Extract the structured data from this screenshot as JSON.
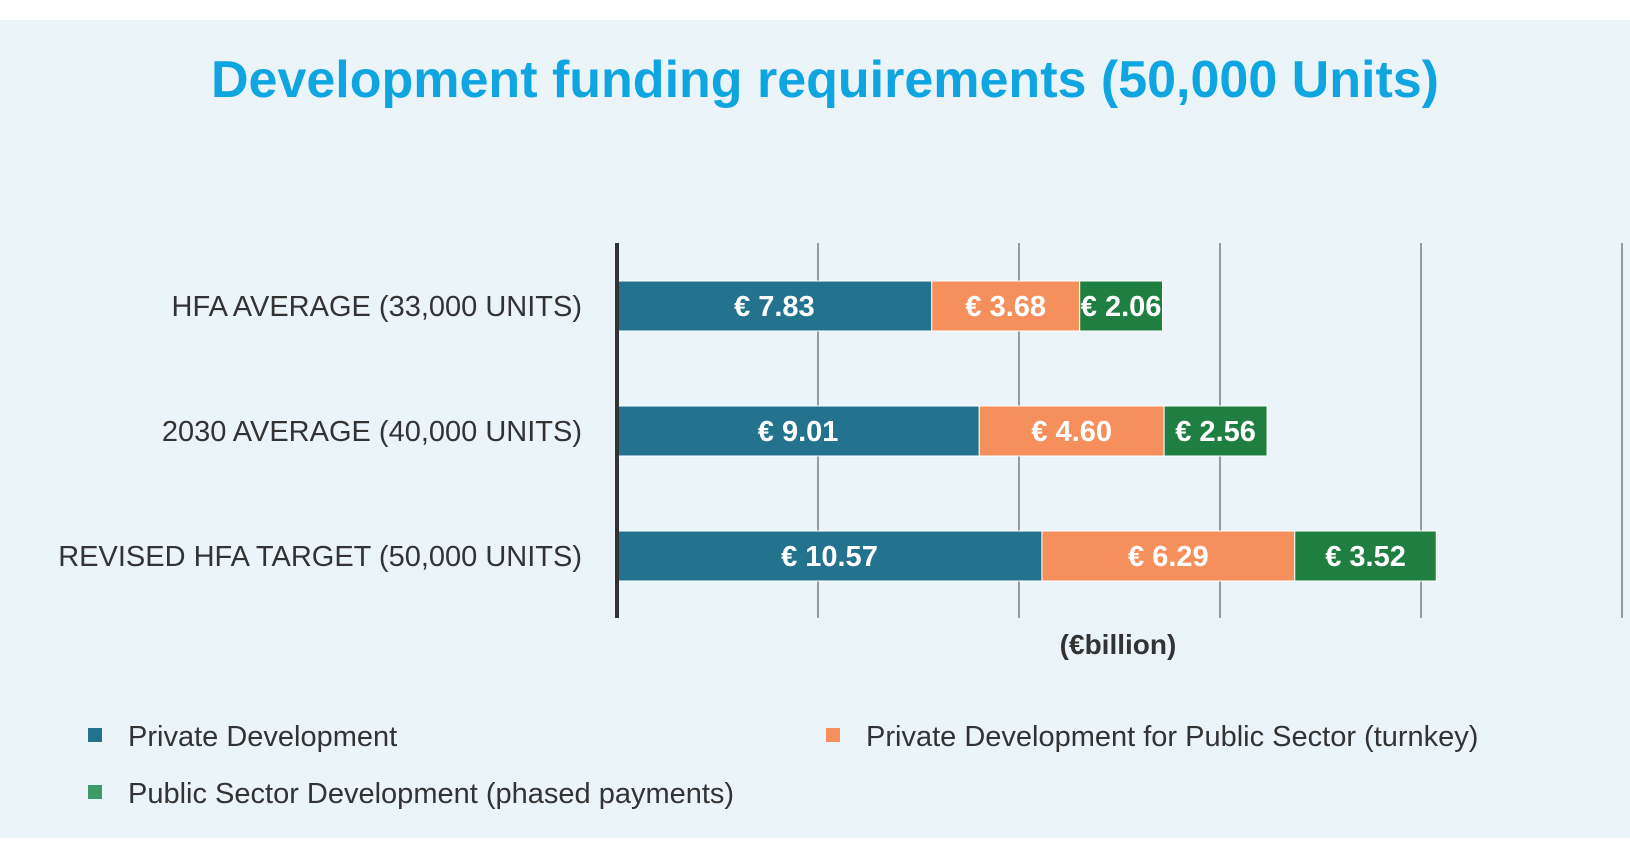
{
  "chart_data": {
    "type": "bar",
    "orientation": "horizontal",
    "stacked": true,
    "title": "Development funding requirements (50,000 Units)",
    "xlabel": "(€billion)",
    "ylabel": "",
    "xlim": [
      0,
      25
    ],
    "grid": true,
    "legend_position": "bottom",
    "categories": [
      "HFA AVERAGE (33,000 UNITS)",
      "2030 AVERAGE (40,000 UNITS)",
      "REVISED HFA TARGET (50,000 UNITS)"
    ],
    "series": [
      {
        "name": "Private Development",
        "color": "#23738f",
        "values": [
          7.83,
          9.01,
          10.57
        ],
        "labels": [
          "€ 7.83",
          "€ 9.01",
          "€ 10.57"
        ]
      },
      {
        "name": "Private Development for Public Sector (turnkey)",
        "color": "#f5905d",
        "values": [
          3.68,
          4.6,
          6.29
        ],
        "labels": [
          "€ 3.68",
          "€ 4.60",
          "€ 6.29"
        ]
      },
      {
        "name": "Public Sector Development (phased payments)",
        "color": "#1f7f41",
        "legend_color": "#3b9a66",
        "values": [
          2.06,
          2.56,
          3.52
        ],
        "labels": [
          "€ 2.06",
          "€ 2.56",
          "€ 3.52"
        ]
      }
    ]
  }
}
